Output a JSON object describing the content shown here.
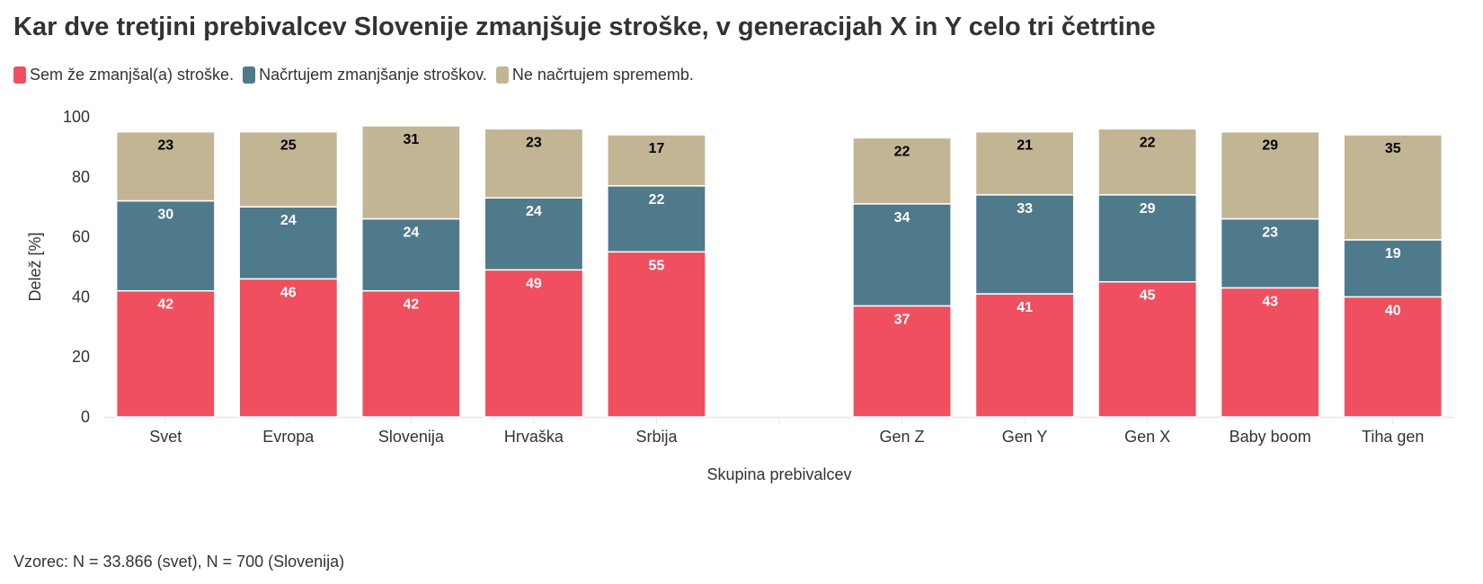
{
  "title": "Kar dve tretjini prebivalcev Slovenije zmanjšuje stroške, v generacijah X in Y celo tri četrtine",
  "footnote": "Vzorec: N = 33.866 (svet), N = 700 (Slovenija)",
  "chart_data": {
    "type": "bar",
    "stacked": true,
    "categories": [
      "Svet",
      "Evropa",
      "Slovenija",
      "Hrvaška",
      "Srbija",
      "",
      "Gen Z",
      "Gen Y",
      "Gen X",
      "Baby boom",
      "Tiha gen"
    ],
    "series": [
      {
        "name": "Sem že zmanjšal(a) stroške.",
        "color": "#ef4f5f",
        "label_color": "#ffffff",
        "values": [
          42,
          46,
          42,
          49,
          55,
          null,
          37,
          41,
          45,
          43,
          40
        ]
      },
      {
        "name": "Načrtujem zmanjšanje stroškov.",
        "color": "#4f7a8b",
        "label_color": "#ffffff",
        "values": [
          30,
          24,
          24,
          24,
          22,
          null,
          34,
          33,
          29,
          23,
          19
        ]
      },
      {
        "name": "Ne načrtujem sprememb.",
        "color": "#c2b594",
        "label_color": "#000000",
        "values": [
          23,
          25,
          31,
          23,
          17,
          null,
          22,
          21,
          22,
          29,
          35
        ]
      }
    ],
    "xlabel": "Skupina prebivalcev",
    "ylabel": "Delež [%]",
    "ylim": [
      0,
      100
    ],
    "yticks": [
      0,
      20,
      40,
      60,
      80,
      100
    ],
    "legend_position": "top-left",
    "grid": false
  }
}
